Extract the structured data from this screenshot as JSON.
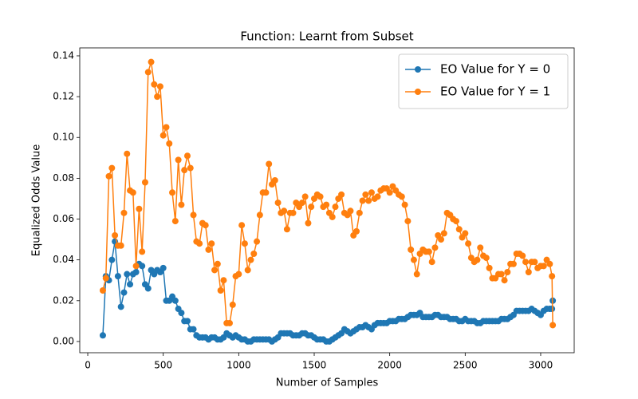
{
  "chart_data": {
    "type": "line",
    "title": "Function: Learnt from Subset",
    "x_label": "Number of Samples",
    "y_label": "Equalized Odds Value",
    "x": [
      100,
      120,
      140,
      160,
      180,
      200,
      220,
      240,
      260,
      280,
      300,
      320,
      340,
      360,
      380,
      400,
      420,
      440,
      460,
      480,
      500,
      520,
      540,
      560,
      580,
      600,
      620,
      640,
      660,
      680,
      700,
      720,
      740,
      760,
      780,
      800,
      820,
      840,
      860,
      880,
      900,
      920,
      940,
      960,
      980,
      1000,
      1020,
      1040,
      1060,
      1080,
      1100,
      1120,
      1140,
      1160,
      1180,
      1200,
      1220,
      1240,
      1260,
      1280,
      1300,
      1320,
      1340,
      1360,
      1380,
      1400,
      1420,
      1440,
      1460,
      1480,
      1500,
      1520,
      1540,
      1560,
      1580,
      1600,
      1620,
      1640,
      1660,
      1680,
      1700,
      1720,
      1740,
      1760,
      1780,
      1800,
      1820,
      1840,
      1860,
      1880,
      1900,
      1920,
      1940,
      1960,
      1980,
      2000,
      2020,
      2040,
      2060,
      2080,
      2100,
      2120,
      2140,
      2160,
      2180,
      2200,
      2220,
      2240,
      2260,
      2280,
      2300,
      2320,
      2340,
      2360,
      2380,
      2400,
      2420,
      2440,
      2460,
      2480,
      2500,
      2520,
      2540,
      2560,
      2580,
      2600,
      2620,
      2640,
      2660,
      2680,
      2700,
      2720,
      2740,
      2760,
      2780,
      2800,
      2820,
      2840,
      2860,
      2880,
      2900,
      2920,
      2940,
      2960,
      2980,
      3000,
      3020,
      3040,
      3060,
      3075,
      3080
    ],
    "series": [
      {
        "name": "EO Value for Y = 0",
        "color": "#1f77b4",
        "values": [
          0.003,
          0.032,
          0.03,
          0.04,
          0.049,
          0.032,
          0.017,
          0.024,
          0.033,
          0.028,
          0.033,
          0.034,
          0.038,
          0.037,
          0.028,
          0.026,
          0.035,
          0.033,
          0.035,
          0.034,
          0.036,
          0.02,
          0.02,
          0.022,
          0.02,
          0.016,
          0.014,
          0.01,
          0.01,
          0.006,
          0.006,
          0.003,
          0.002,
          0.002,
          0.002,
          0.001,
          0.002,
          0.002,
          0.001,
          0.001,
          0.002,
          0.004,
          0.003,
          0.002,
          0.003,
          0.002,
          0.001,
          0.001,
          0.0,
          0.0,
          0.001,
          0.001,
          0.001,
          0.001,
          0.001,
          0.001,
          0.0,
          0.001,
          0.002,
          0.004,
          0.004,
          0.004,
          0.004,
          0.003,
          0.003,
          0.003,
          0.004,
          0.004,
          0.003,
          0.003,
          0.002,
          0.001,
          0.001,
          0.001,
          0.0,
          0.0,
          0.001,
          0.002,
          0.003,
          0.004,
          0.006,
          0.005,
          0.004,
          0.005,
          0.006,
          0.007,
          0.007,
          0.008,
          0.007,
          0.006,
          0.008,
          0.009,
          0.009,
          0.009,
          0.009,
          0.01,
          0.01,
          0.01,
          0.011,
          0.011,
          0.011,
          0.012,
          0.013,
          0.013,
          0.013,
          0.014,
          0.012,
          0.012,
          0.012,
          0.012,
          0.013,
          0.013,
          0.012,
          0.012,
          0.012,
          0.011,
          0.011,
          0.011,
          0.01,
          0.01,
          0.011,
          0.01,
          0.01,
          0.01,
          0.009,
          0.009,
          0.01,
          0.01,
          0.01,
          0.01,
          0.01,
          0.01,
          0.011,
          0.011,
          0.011,
          0.012,
          0.013,
          0.015,
          0.015,
          0.015,
          0.015,
          0.015,
          0.016,
          0.015,
          0.014,
          0.013,
          0.015,
          0.016,
          0.016,
          0.016,
          0.02
        ]
      },
      {
        "name": "EO Value for Y = 1",
        "color": "#ff7f0e",
        "values": [
          0.025,
          0.031,
          0.081,
          0.085,
          0.052,
          0.047,
          0.047,
          0.063,
          0.092,
          0.074,
          0.073,
          0.037,
          0.065,
          0.044,
          0.078,
          0.132,
          0.137,
          0.126,
          0.12,
          0.125,
          0.101,
          0.105,
          0.097,
          0.073,
          0.059,
          0.089,
          0.067,
          0.084,
          0.091,
          0.085,
          0.062,
          0.049,
          0.048,
          0.058,
          0.057,
          0.045,
          0.048,
          0.035,
          0.038,
          0.025,
          0.03,
          0.009,
          0.009,
          0.018,
          0.032,
          0.033,
          0.057,
          0.048,
          0.035,
          0.04,
          0.043,
          0.049,
          0.062,
          0.073,
          0.073,
          0.087,
          0.077,
          0.079,
          0.068,
          0.063,
          0.064,
          0.055,
          0.063,
          0.063,
          0.068,
          0.066,
          0.068,
          0.071,
          0.058,
          0.066,
          0.07,
          0.072,
          0.071,
          0.066,
          0.067,
          0.063,
          0.061,
          0.066,
          0.07,
          0.072,
          0.063,
          0.062,
          0.064,
          0.052,
          0.054,
          0.063,
          0.069,
          0.072,
          0.069,
          0.073,
          0.07,
          0.071,
          0.074,
          0.075,
          0.075,
          0.073,
          0.076,
          0.074,
          0.072,
          0.071,
          0.067,
          0.059,
          0.045,
          0.04,
          0.033,
          0.043,
          0.045,
          0.044,
          0.044,
          0.039,
          0.046,
          0.052,
          0.05,
          0.053,
          0.063,
          0.062,
          0.06,
          0.059,
          0.055,
          0.051,
          0.053,
          0.048,
          0.041,
          0.039,
          0.04,
          0.046,
          0.042,
          0.041,
          0.036,
          0.031,
          0.031,
          0.033,
          0.033,
          0.03,
          0.034,
          0.038,
          0.038,
          0.043,
          0.043,
          0.042,
          0.039,
          0.034,
          0.039,
          0.039,
          0.036,
          0.037,
          0.037,
          0.04,
          0.038,
          0.032,
          0.008
        ]
      }
    ],
    "xlim": [
      -53,
      3222
    ],
    "ylim": [
      -0.0055,
      0.1439
    ],
    "xticks": [
      0,
      500,
      1000,
      1500,
      2000,
      2500,
      3000
    ],
    "yticks": [
      {
        "value": 0,
        "label": "0.00"
      },
      {
        "value": 0.02,
        "label": "0.02"
      },
      {
        "value": 0.04,
        "label": "0.04"
      },
      {
        "value": 0.06,
        "label": "0.06"
      },
      {
        "value": 0.08,
        "label": "0.08"
      },
      {
        "value": 0.1,
        "label": "0.10"
      },
      {
        "value": 0.12,
        "label": "0.12"
      },
      {
        "value": 0.14,
        "label": "0.14"
      }
    ],
    "legend": "upper right",
    "grid": false
  }
}
